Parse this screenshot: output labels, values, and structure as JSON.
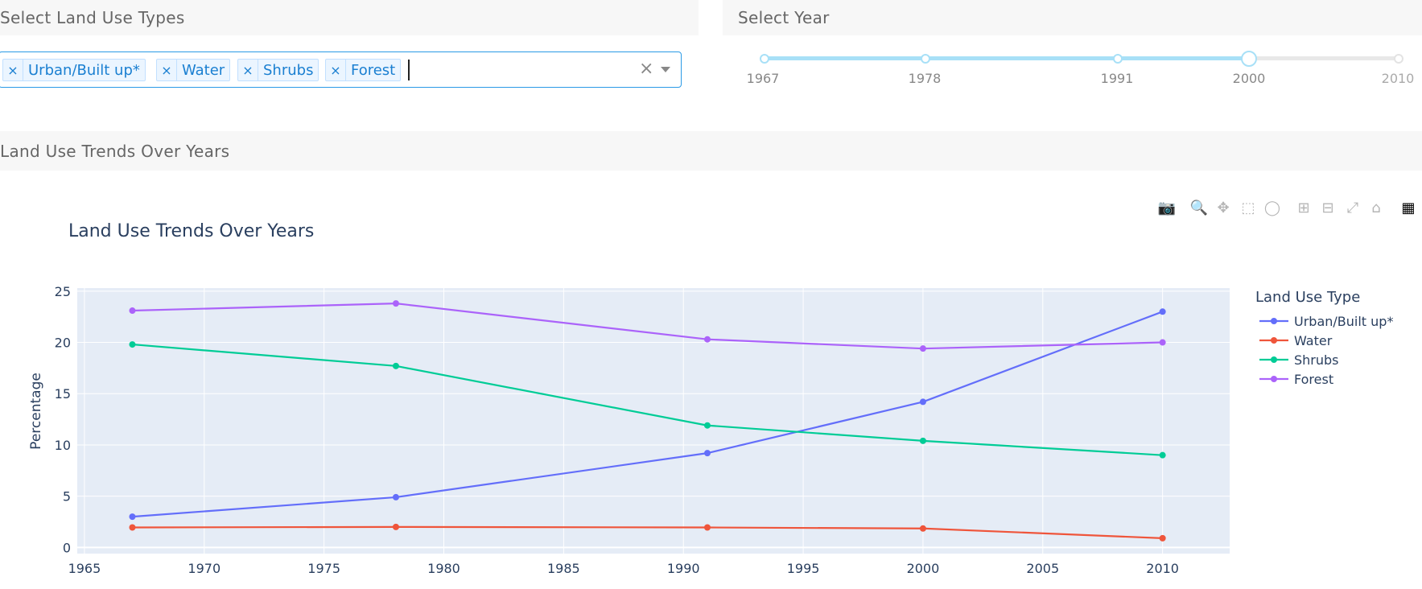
{
  "land_use_panel": {
    "title": "Select Land Use Types"
  },
  "year_panel": {
    "title": "Select Year"
  },
  "trends_panel": {
    "title": "Land Use Trends Over Years"
  },
  "multiselect": {
    "selected": [
      "Urban/Built up*",
      "Water",
      "Shrubs",
      "Forest"
    ],
    "remove_glyph": "×",
    "clear_glyph": "×"
  },
  "slider": {
    "marks": [
      "1967",
      "1978",
      "1991",
      "2000",
      "2010"
    ],
    "selected": "2000"
  },
  "modebar": {
    "icons": [
      "camera-icon",
      "zoom-icon",
      "pan-icon",
      "box-select-icon",
      "lasso-icon",
      "zoom-in-icon",
      "zoom-out-icon",
      "autoscale-icon",
      "reset-axes-icon",
      "plotly-logo-icon"
    ],
    "glyphs": [
      "📷",
      "🔍",
      "✥",
      "⬚",
      "◯",
      "⊞",
      "⊟",
      "⤢",
      "⌂",
      "▦"
    ]
  },
  "chart_data": {
    "type": "line",
    "title": "Land Use Trends Over Years",
    "xlabel": "",
    "ylabel": "Percentage",
    "xlim": [
      1964.7,
      2012.8
    ],
    "ylim": [
      -0.6,
      25.3
    ],
    "xticks": [
      1965,
      1970,
      1975,
      1980,
      1985,
      1990,
      1995,
      2000,
      2005,
      2010
    ],
    "yticks": [
      0,
      5,
      10,
      15,
      20,
      25
    ],
    "grid": true,
    "legend_title": "Land Use Type",
    "legend_position": "right",
    "x": [
      1967,
      1978,
      1991,
      2000,
      2010
    ],
    "series": [
      {
        "name": "Urban/Built up*",
        "color": "#636efa",
        "values": [
          3.0,
          4.9,
          9.2,
          14.2,
          23.0
        ]
      },
      {
        "name": "Water",
        "color": "#ef553b",
        "values": [
          1.95,
          2.0,
          1.95,
          1.85,
          0.9
        ]
      },
      {
        "name": "Shrubs",
        "color": "#00cc96",
        "values": [
          19.8,
          17.7,
          11.9,
          10.4,
          9.0
        ]
      },
      {
        "name": "Forest",
        "color": "#ab63fa",
        "values": [
          23.1,
          23.8,
          20.3,
          19.4,
          20.0
        ]
      }
    ],
    "plot_bg": "#e5ecf6"
  }
}
